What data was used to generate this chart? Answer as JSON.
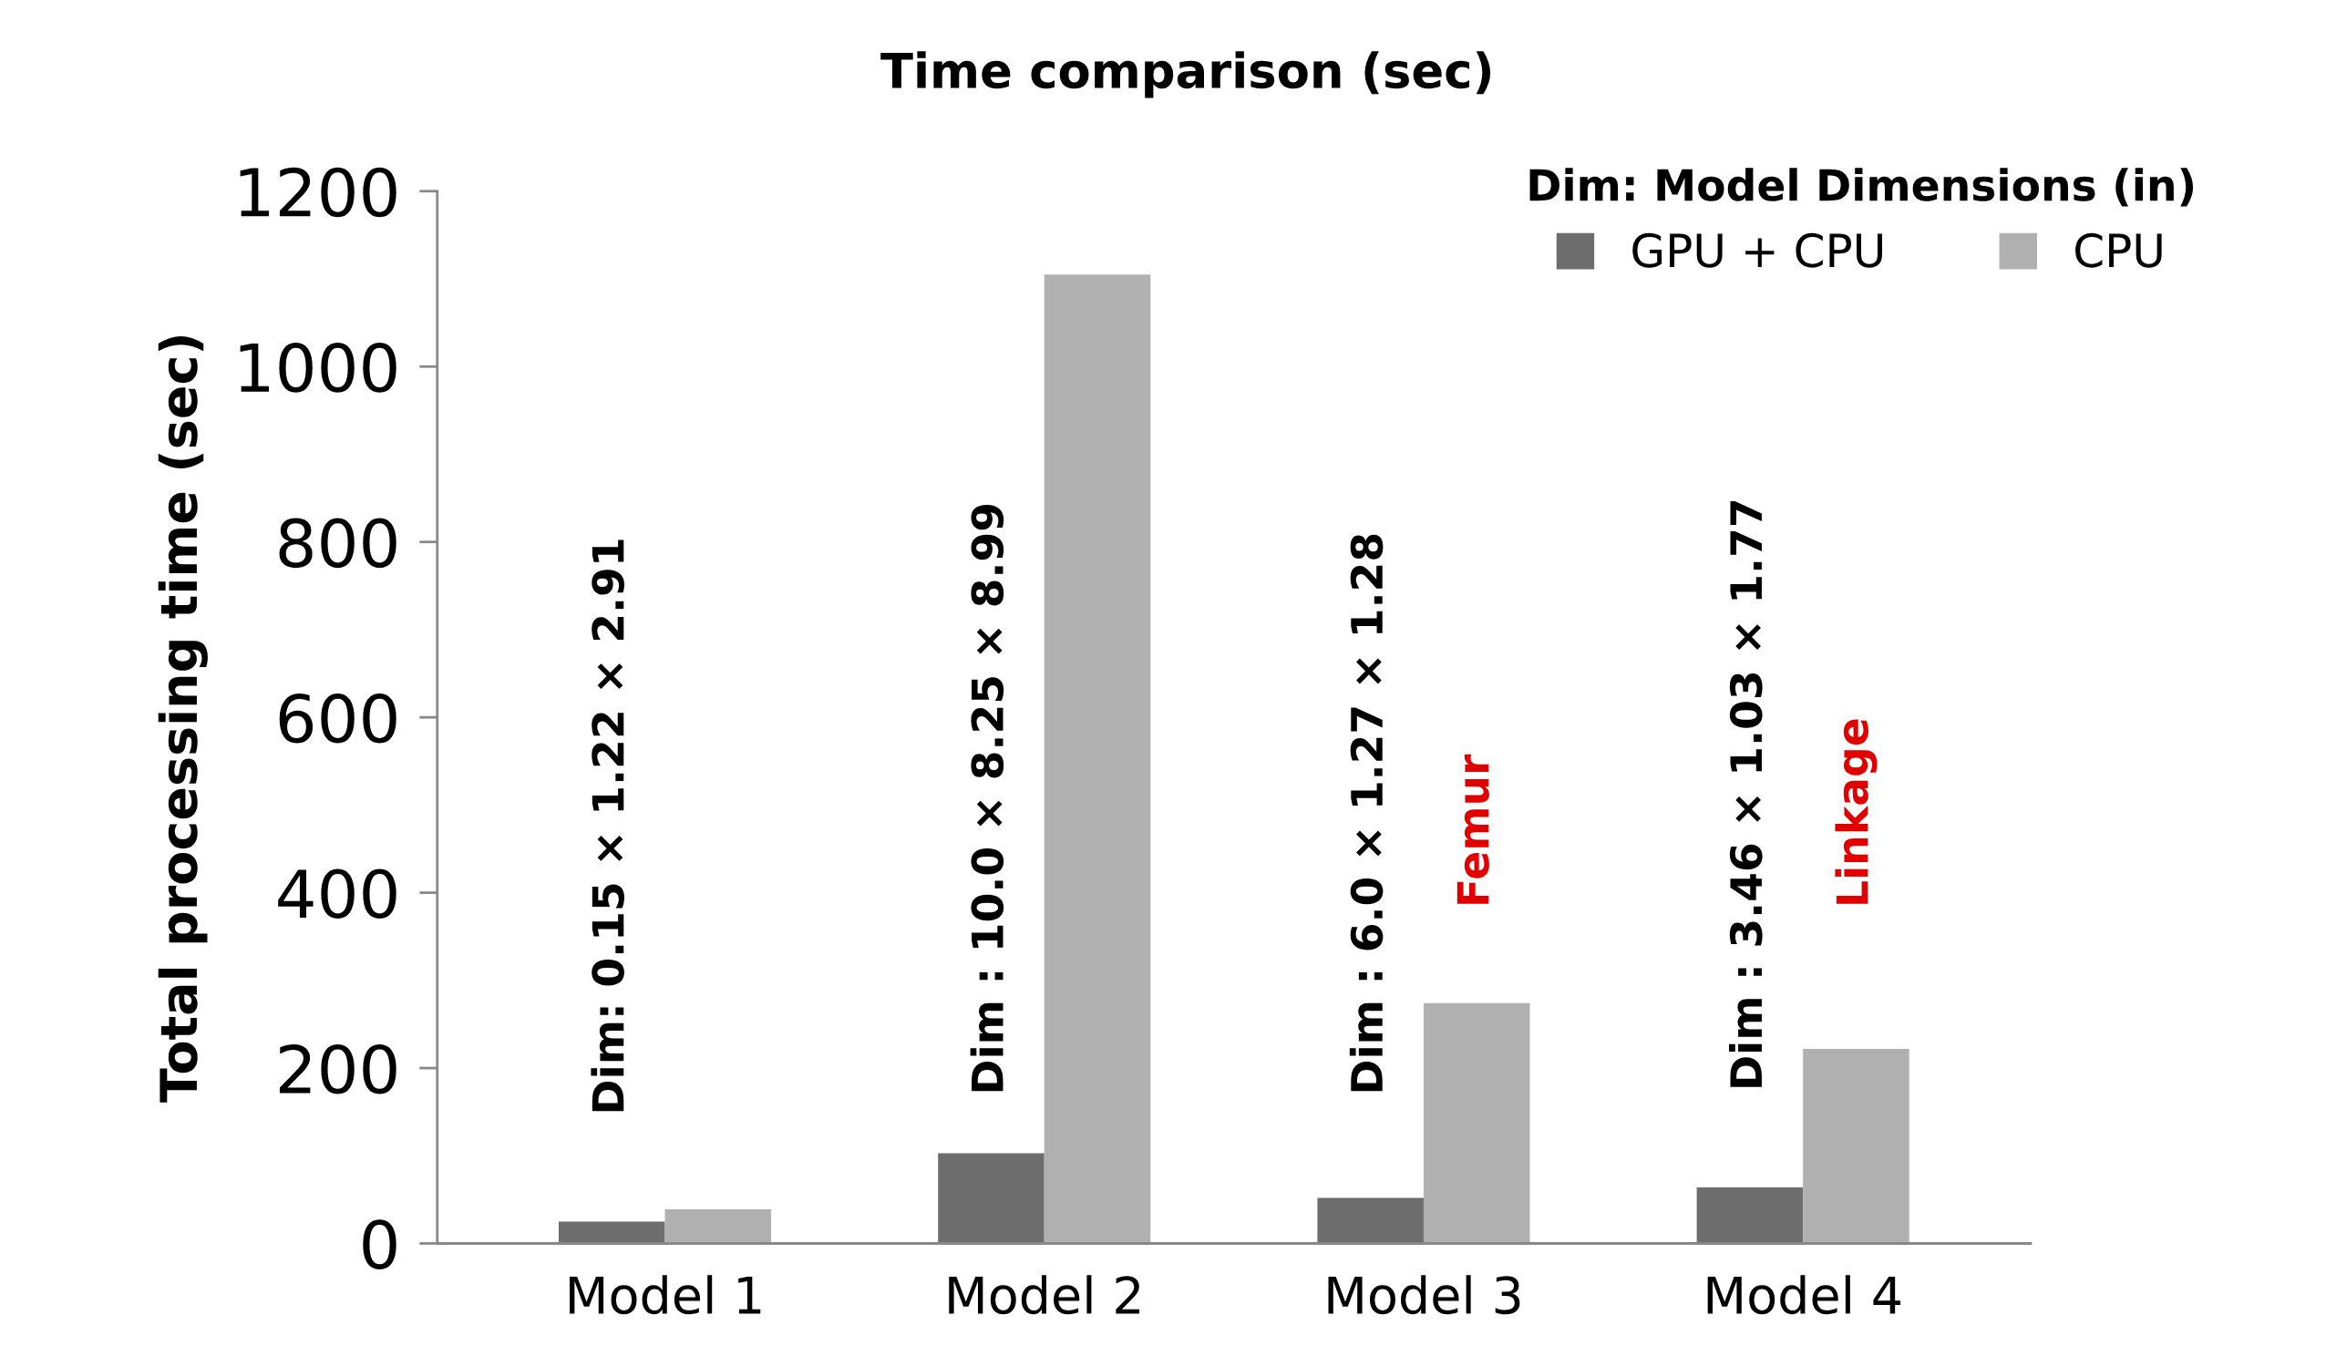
{
  "chart_data": {
    "type": "bar",
    "title": "Time comparison (sec)",
    "ylabel": "Total processing time (sec)",
    "legend_title": "Dim: Model Dimensions (in)",
    "categories": [
      "Model 1",
      "Model 2",
      "Model 3",
      "Model 4"
    ],
    "series": [
      {
        "name": "GPU + CPU",
        "color": "#6d6d6d",
        "values": [
          25,
          103,
          52,
          64
        ]
      },
      {
        "name": "CPU",
        "color": "#b0b0b0",
        "values": [
          39,
          1105,
          274,
          222
        ]
      }
    ],
    "ylim": [
      0,
      1200
    ],
    "yticks": [
      0,
      200,
      400,
      600,
      800,
      1000,
      1200
    ],
    "grid": false,
    "legend": "top right",
    "annotations": [
      "Dim: 0.15 × 1.22 × 2.91",
      "Dim : 10.0 × 8.25 × 8.99",
      "Dim : 6.0 × 1.27 × 1.28",
      "Femur",
      "Dim : 3.46 × 1.03 × 1.77",
      "Linkage"
    ]
  }
}
